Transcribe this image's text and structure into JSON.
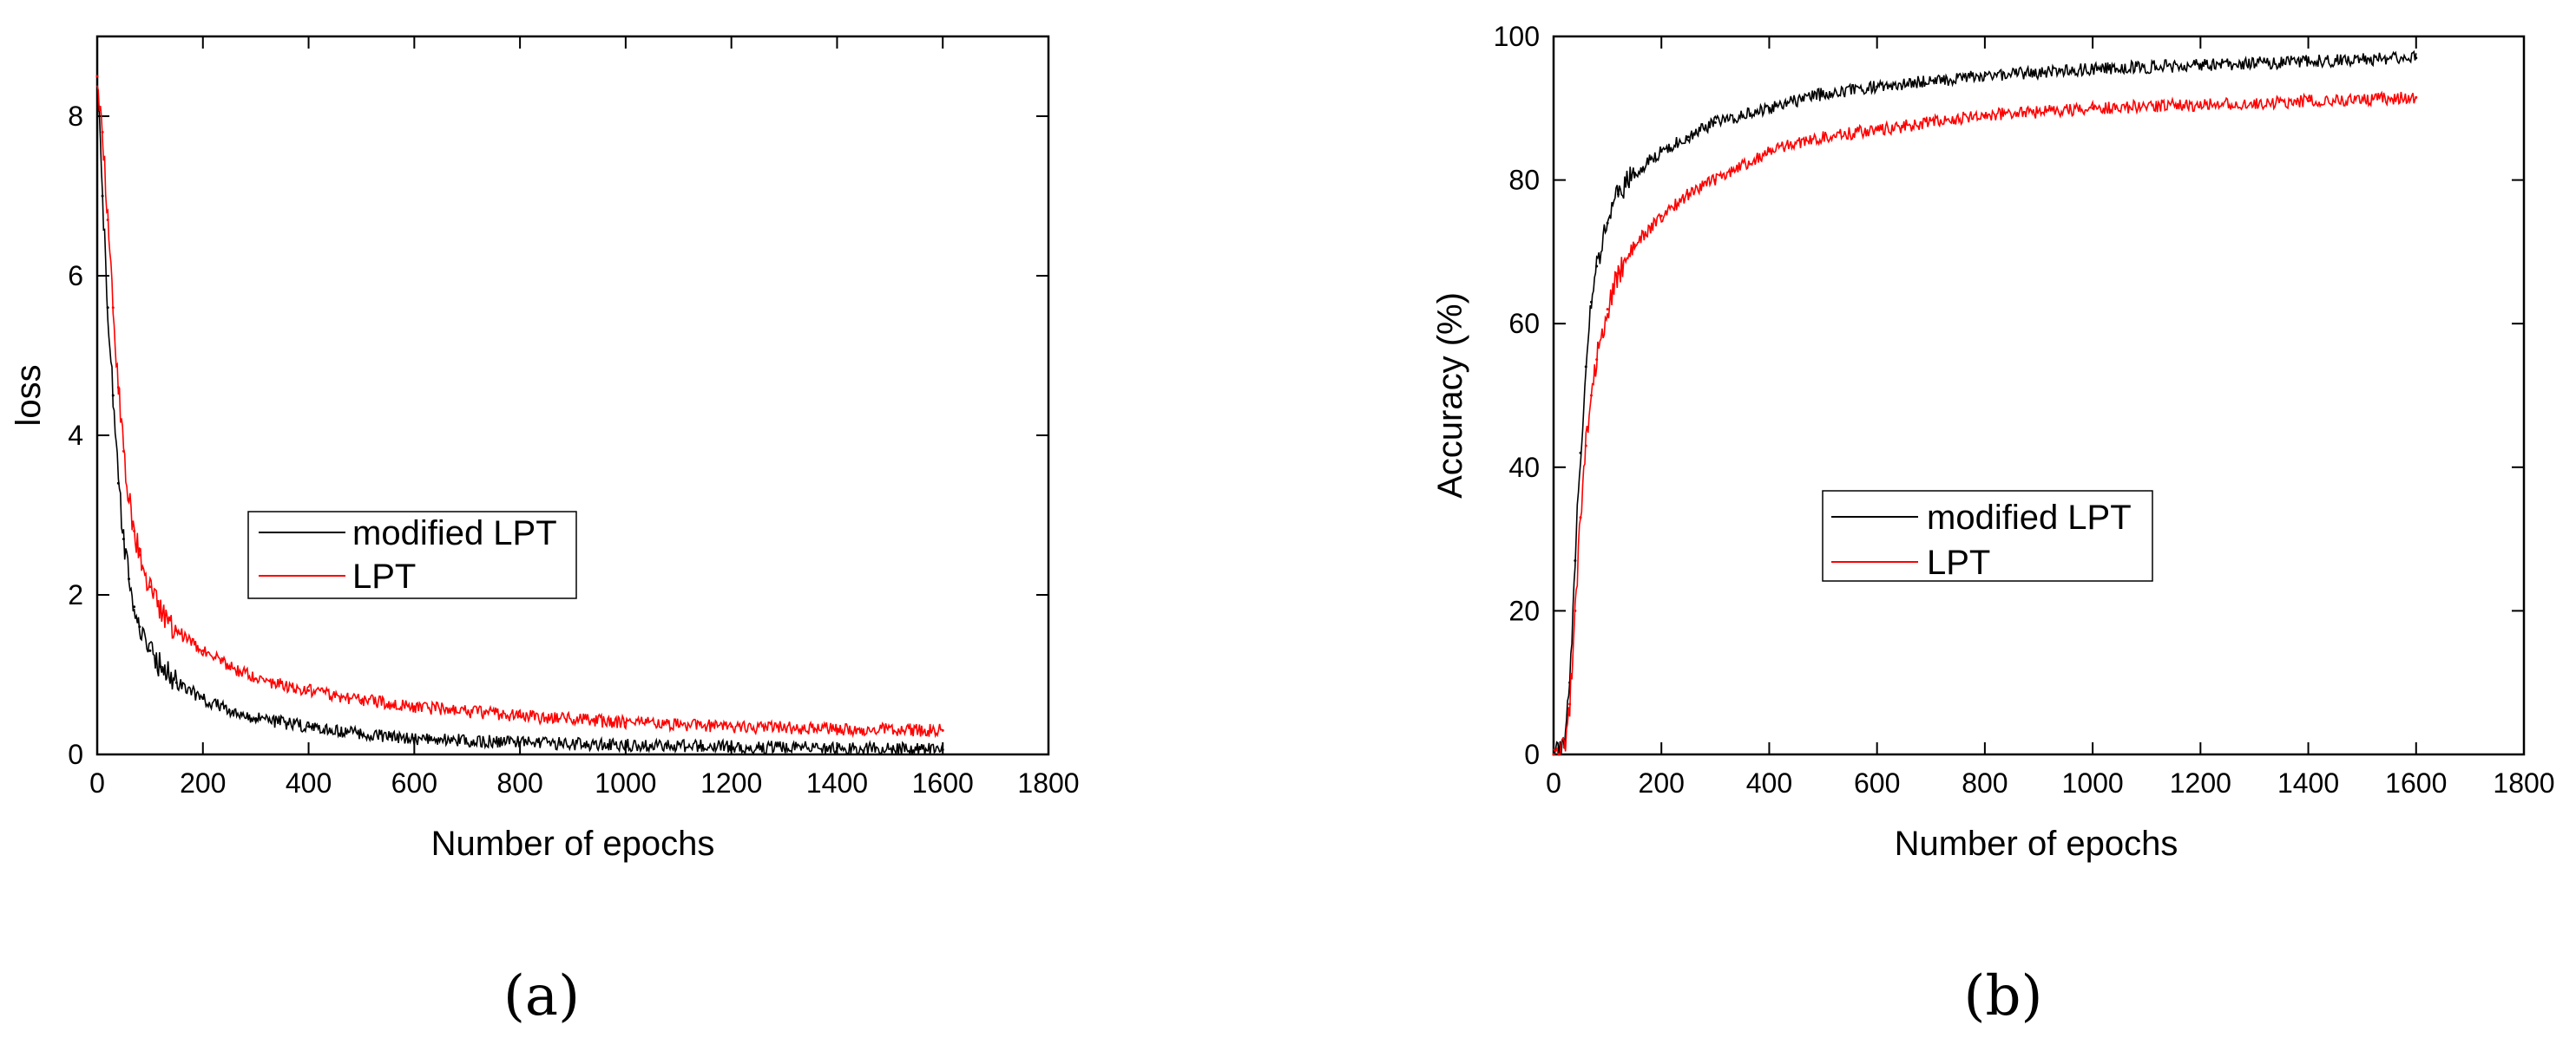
{
  "chart_data": [
    {
      "type": "line",
      "panel": "a",
      "title": "",
      "xlabel": "Number of epochs",
      "ylabel": "loss",
      "xlim": [
        0,
        1800
      ],
      "ylim": [
        0,
        9
      ],
      "xticks": [
        0,
        200,
        400,
        600,
        800,
        1000,
        1200,
        1400,
        1600,
        1800
      ],
      "yticks": [
        0,
        2,
        4,
        6,
        8
      ],
      "legend_position": "center-left",
      "series": [
        {
          "name": "modified LPT",
          "color": "#000000",
          "x": [
            0,
            10,
            20,
            30,
            40,
            50,
            60,
            70,
            80,
            100,
            120,
            150,
            200,
            250,
            300,
            400,
            500,
            600,
            800,
            1000,
            1200,
            1400,
            1600
          ],
          "y": [
            8.5,
            7.0,
            5.6,
            4.5,
            3.4,
            2.7,
            2.2,
            1.85,
            1.6,
            1.3,
            1.1,
            0.9,
            0.7,
            0.55,
            0.45,
            0.35,
            0.25,
            0.2,
            0.15,
            0.12,
            0.1,
            0.08,
            0.06
          ]
        },
        {
          "name": "LPT",
          "color": "#ff0000",
          "x": [
            0,
            10,
            20,
            30,
            40,
            50,
            60,
            70,
            80,
            100,
            120,
            150,
            200,
            250,
            300,
            400,
            500,
            600,
            800,
            1000,
            1200,
            1400,
            1600
          ],
          "y": [
            8.5,
            7.8,
            6.7,
            5.6,
            4.6,
            3.8,
            3.2,
            2.8,
            2.5,
            2.1,
            1.8,
            1.55,
            1.3,
            1.1,
            0.95,
            0.8,
            0.68,
            0.6,
            0.48,
            0.4,
            0.35,
            0.32,
            0.3
          ]
        }
      ]
    },
    {
      "type": "line",
      "panel": "b",
      "title": "",
      "xlabel": "Number of epochs",
      "ylabel": "Accuracy (%)",
      "xlim": [
        0,
        1800
      ],
      "ylim": [
        0,
        100
      ],
      "xticks": [
        0,
        200,
        400,
        600,
        800,
        1000,
        1200,
        1400,
        1600,
        1800
      ],
      "yticks": [
        0,
        20,
        40,
        60,
        80,
        100
      ],
      "legend_position": "center",
      "series": [
        {
          "name": "modified LPT",
          "color": "#000000",
          "x": [
            0,
            10,
            20,
            30,
            40,
            50,
            60,
            70,
            80,
            100,
            120,
            150,
            200,
            250,
            300,
            400,
            500,
            600,
            800,
            1000,
            1200,
            1400,
            1600
          ],
          "y": [
            0,
            0,
            1,
            10,
            27,
            42,
            54,
            63,
            68,
            74,
            78,
            81,
            84,
            86,
            88,
            90,
            92,
            93,
            94.5,
            95.5,
            96,
            96.5,
            97
          ]
        },
        {
          "name": "LPT",
          "color": "#ff0000",
          "x": [
            0,
            10,
            20,
            30,
            40,
            50,
            60,
            70,
            80,
            100,
            120,
            150,
            200,
            250,
            300,
            400,
            500,
            600,
            800,
            1000,
            1200,
            1400,
            1600
          ],
          "y": [
            0,
            0,
            1,
            7,
            20,
            33,
            43,
            50,
            55,
            62,
            67,
            71,
            75,
            78,
            80,
            84,
            86,
            87,
            89,
            90,
            90.5,
            91,
            91.5
          ]
        }
      ]
    }
  ],
  "panel_labels": [
    "(a)",
    "(b)"
  ]
}
